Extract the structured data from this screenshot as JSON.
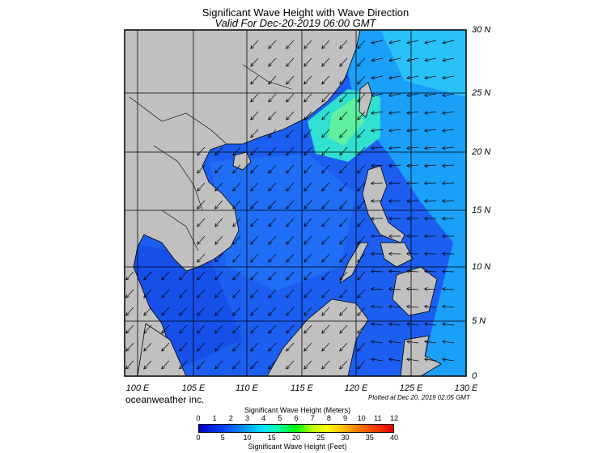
{
  "title": "Significant Wave Height with Wave Direction",
  "subtitle": "Valid For Dec-20-2019 06:00 GMT",
  "lat_labels": [
    "30 N",
    "25 N",
    "20 N",
    "15 N",
    "10 N",
    "5 N",
    "0"
  ],
  "lon_labels": [
    "100 E",
    "105 E",
    "110 E",
    "115 E",
    "120 E",
    "125 E",
    "130 E"
  ],
  "brand": "oceanweather inc.",
  "plotted": "Plotted at Dec 20, 2019 02:05 GMT",
  "colorbar": {
    "title_meters": "Significant Wave Height (Meters)",
    "title_feet": "Significant Wave Height (Feet)",
    "meters_ticks": [
      "0",
      "1",
      "2",
      "3",
      "4",
      "5",
      "6",
      "7",
      "8",
      "9",
      "10",
      "11",
      "12"
    ],
    "feet_ticks": [
      "0",
      "5",
      "10",
      "15",
      "20",
      "25",
      "30",
      "35",
      "40"
    ]
  },
  "colors": {
    "land": "#c0c0c0",
    "sea_deep": "#1040e0",
    "sea_mid": "#1878f0",
    "sea_high": "#00e0c0",
    "accent": "#00ff80"
  }
}
